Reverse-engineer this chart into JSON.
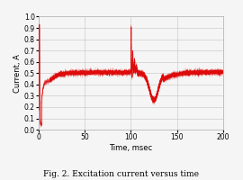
{
  "title": "Fig. 2. Excitation current versus time",
  "xlabel": "Time, msec",
  "ylabel": "Current, A",
  "xlim": [
    0,
    200
  ],
  "ylim": [
    0.0,
    1.0
  ],
  "xticks": [
    0,
    50,
    100,
    150,
    200
  ],
  "yticks": [
    0.0,
    0.1,
    0.2,
    0.3,
    0.4,
    0.5,
    0.6,
    0.7,
    0.8,
    0.9,
    1.0
  ],
  "line_color": "#dd0000",
  "background_color": "#f5f5f5",
  "grid_color": "#cccccc",
  "noise_seed": 42
}
